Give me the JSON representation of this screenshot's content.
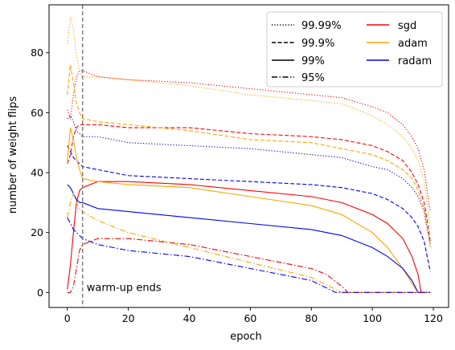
{
  "chart_data": {
    "type": "line",
    "xlabel": "epoch",
    "ylabel": "number of weight flips",
    "xlim": [
      -6,
      125
    ],
    "ylim": [
      -5,
      96
    ],
    "xticks": [
      0,
      20,
      40,
      60,
      80,
      100,
      120
    ],
    "yticks": [
      0,
      20,
      40,
      60,
      80
    ],
    "grid": false,
    "legend_position": "top-right",
    "legend_linestyles": [
      {
        "label": "99.99%",
        "style": "dotted"
      },
      {
        "label": "99.9%",
        "style": "dashed"
      },
      {
        "label": "99%",
        "style": "solid"
      },
      {
        "label": "95%",
        "style": "dashdot"
      }
    ],
    "legend_optimizers": [
      {
        "label": "sgd",
        "color": "#ff0000"
      },
      {
        "label": "adam",
        "color": "#ffa500"
      },
      {
        "label": "radam",
        "color": "#0000ff"
      }
    ],
    "vline": {
      "x": 5,
      "color": "#808080",
      "style": "dashed",
      "annotation": "warm-up ends"
    },
    "series": [
      {
        "optimizer": "sgd",
        "percentile": "99.99%",
        "style": "dotted",
        "color": "#ff0000",
        "points": [
          [
            0,
            61
          ],
          [
            1,
            58
          ],
          [
            2,
            66
          ],
          [
            3,
            72
          ],
          [
            4,
            74
          ],
          [
            5,
            74
          ],
          [
            10,
            72
          ],
          [
            20,
            71
          ],
          [
            40,
            70
          ],
          [
            60,
            68
          ],
          [
            80,
            66
          ],
          [
            90,
            65
          ],
          [
            100,
            62
          ],
          [
            105,
            60
          ],
          [
            110,
            56
          ],
          [
            113,
            52
          ],
          [
            115,
            48
          ],
          [
            117,
            41
          ],
          [
            118,
            34
          ],
          [
            119,
            27
          ]
        ]
      },
      {
        "optimizer": "adam",
        "percentile": "99.99%",
        "style": "dotted",
        "color": "#ffa500",
        "points": [
          [
            0,
            83
          ],
          [
            1,
            92
          ],
          [
            2,
            88
          ],
          [
            3,
            79
          ],
          [
            4,
            74
          ],
          [
            5,
            72
          ],
          [
            10,
            72
          ],
          [
            20,
            71
          ],
          [
            40,
            69
          ],
          [
            60,
            66
          ],
          [
            80,
            64
          ],
          [
            90,
            63
          ],
          [
            100,
            59
          ],
          [
            105,
            56
          ],
          [
            110,
            52
          ],
          [
            113,
            48
          ],
          [
            115,
            44
          ],
          [
            117,
            37
          ],
          [
            118,
            30
          ],
          [
            119,
            22
          ]
        ]
      },
      {
        "optimizer": "radam",
        "percentile": "99.99%",
        "style": "dotted",
        "color": "#0000ff",
        "points": [
          [
            0,
            58
          ],
          [
            1,
            59
          ],
          [
            2,
            57
          ],
          [
            3,
            54
          ],
          [
            4,
            53
          ],
          [
            5,
            52
          ],
          [
            10,
            52
          ],
          [
            20,
            50
          ],
          [
            40,
            49
          ],
          [
            60,
            48
          ],
          [
            80,
            46
          ],
          [
            90,
            45
          ],
          [
            100,
            42
          ],
          [
            105,
            41
          ],
          [
            110,
            38
          ],
          [
            113,
            35
          ],
          [
            115,
            32
          ],
          [
            117,
            27
          ],
          [
            118,
            21
          ],
          [
            119,
            16
          ]
        ]
      },
      {
        "optimizer": "sgd",
        "percentile": "99.9%",
        "style": "dashed",
        "color": "#ff0000",
        "points": [
          [
            0,
            43
          ],
          [
            1,
            46
          ],
          [
            2,
            52
          ],
          [
            3,
            55
          ],
          [
            4,
            56
          ],
          [
            5,
            56
          ],
          [
            10,
            56
          ],
          [
            20,
            55
          ],
          [
            40,
            55
          ],
          [
            60,
            53
          ],
          [
            80,
            52
          ],
          [
            90,
            51
          ],
          [
            100,
            49
          ],
          [
            105,
            47
          ],
          [
            110,
            44
          ],
          [
            113,
            40
          ],
          [
            115,
            36
          ],
          [
            117,
            30
          ],
          [
            118,
            24
          ],
          [
            119,
            17
          ]
        ]
      },
      {
        "optimizer": "adam",
        "percentile": "99.9%",
        "style": "dashed",
        "color": "#ffa500",
        "points": [
          [
            0,
            66
          ],
          [
            1,
            76
          ],
          [
            2,
            70
          ],
          [
            3,
            63
          ],
          [
            4,
            60
          ],
          [
            5,
            58
          ],
          [
            10,
            57
          ],
          [
            20,
            56
          ],
          [
            40,
            54
          ],
          [
            60,
            51
          ],
          [
            80,
            50
          ],
          [
            90,
            48
          ],
          [
            100,
            46
          ],
          [
            105,
            44
          ],
          [
            110,
            41
          ],
          [
            113,
            38
          ],
          [
            115,
            34
          ],
          [
            117,
            28
          ],
          [
            118,
            22
          ],
          [
            119,
            15
          ]
        ]
      },
      {
        "optimizer": "radam",
        "percentile": "99.9%",
        "style": "dashed",
        "color": "#0000ff",
        "points": [
          [
            0,
            49
          ],
          [
            1,
            47
          ],
          [
            2,
            45
          ],
          [
            3,
            44
          ],
          [
            4,
            43
          ],
          [
            5,
            42
          ],
          [
            10,
            41
          ],
          [
            20,
            39
          ],
          [
            40,
            38
          ],
          [
            60,
            37
          ],
          [
            80,
            36
          ],
          [
            90,
            35
          ],
          [
            100,
            33
          ],
          [
            105,
            31
          ],
          [
            110,
            28
          ],
          [
            113,
            25
          ],
          [
            115,
            22
          ],
          [
            117,
            17
          ],
          [
            118,
            12
          ],
          [
            119,
            7
          ]
        ]
      },
      {
        "optimizer": "sgd",
        "percentile": "99%",
        "style": "solid",
        "color": "#ff0000",
        "points": [
          [
            0,
            1
          ],
          [
            1,
            9
          ],
          [
            2,
            20
          ],
          [
            3,
            30
          ],
          [
            4,
            34
          ],
          [
            5,
            35
          ],
          [
            10,
            37
          ],
          [
            20,
            37
          ],
          [
            40,
            36
          ],
          [
            60,
            34
          ],
          [
            80,
            32
          ],
          [
            90,
            30
          ],
          [
            100,
            26
          ],
          [
            105,
            23
          ],
          [
            110,
            18
          ],
          [
            113,
            12
          ],
          [
            115,
            6
          ],
          [
            116,
            0
          ],
          [
            119,
            0
          ]
        ]
      },
      {
        "optimizer": "adam",
        "percentile": "99%",
        "style": "solid",
        "color": "#ffa500",
        "points": [
          [
            0,
            44
          ],
          [
            1,
            55
          ],
          [
            2,
            51
          ],
          [
            3,
            45
          ],
          [
            4,
            41
          ],
          [
            5,
            38
          ],
          [
            10,
            37
          ],
          [
            20,
            36
          ],
          [
            40,
            35
          ],
          [
            60,
            32
          ],
          [
            80,
            29
          ],
          [
            90,
            26
          ],
          [
            100,
            20
          ],
          [
            105,
            15
          ],
          [
            110,
            8
          ],
          [
            113,
            3
          ],
          [
            115,
            0
          ],
          [
            119,
            0
          ]
        ]
      },
      {
        "optimizer": "radam",
        "percentile": "99%",
        "style": "solid",
        "color": "#0000ff",
        "points": [
          [
            0,
            36
          ],
          [
            1,
            35
          ],
          [
            2,
            33
          ],
          [
            3,
            31
          ],
          [
            4,
            30
          ],
          [
            5,
            30
          ],
          [
            10,
            28
          ],
          [
            20,
            27
          ],
          [
            40,
            25
          ],
          [
            60,
            23
          ],
          [
            80,
            21
          ],
          [
            90,
            19
          ],
          [
            100,
            15
          ],
          [
            105,
            12
          ],
          [
            110,
            8
          ],
          [
            113,
            4
          ],
          [
            115,
            0
          ],
          [
            119,
            0
          ]
        ]
      },
      {
        "optimizer": "sgd",
        "percentile": "95%",
        "style": "dashdot",
        "color": "#ff0000",
        "points": [
          [
            0,
            0
          ],
          [
            1,
            0
          ],
          [
            2,
            2
          ],
          [
            3,
            8
          ],
          [
            4,
            14
          ],
          [
            5,
            16
          ],
          [
            10,
            18
          ],
          [
            20,
            18
          ],
          [
            40,
            16
          ],
          [
            60,
            12
          ],
          [
            80,
            8
          ],
          [
            85,
            6
          ],
          [
            90,
            2
          ],
          [
            92,
            0
          ],
          [
            119,
            0
          ]
        ]
      },
      {
        "optimizer": "adam",
        "percentile": "95%",
        "style": "dashdot",
        "color": "#ffa500",
        "points": [
          [
            0,
            25
          ],
          [
            1,
            30
          ],
          [
            2,
            33
          ],
          [
            3,
            30
          ],
          [
            4,
            28
          ],
          [
            5,
            27
          ],
          [
            10,
            24
          ],
          [
            20,
            20
          ],
          [
            40,
            15
          ],
          [
            60,
            10
          ],
          [
            80,
            5
          ],
          [
            88,
            1
          ],
          [
            90,
            0
          ],
          [
            119,
            0
          ]
        ]
      },
      {
        "optimizer": "radam",
        "percentile": "95%",
        "style": "dashdot",
        "color": "#0000ff",
        "points": [
          [
            0,
            25
          ],
          [
            1,
            23
          ],
          [
            2,
            21
          ],
          [
            3,
            20
          ],
          [
            4,
            19
          ],
          [
            5,
            18
          ],
          [
            10,
            16
          ],
          [
            20,
            14
          ],
          [
            40,
            12
          ],
          [
            60,
            8
          ],
          [
            80,
            4
          ],
          [
            86,
            1
          ],
          [
            88,
            0
          ],
          [
            119,
            0
          ]
        ]
      }
    ]
  }
}
